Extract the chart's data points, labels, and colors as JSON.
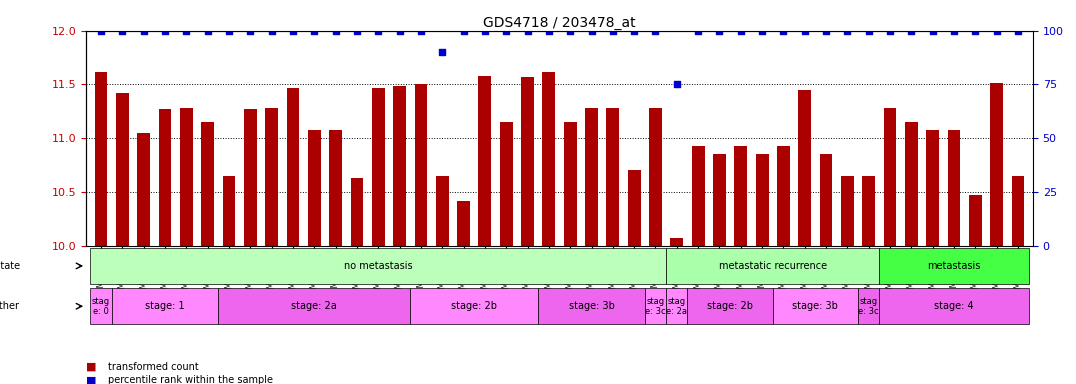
{
  "title": "GDS4718 / 203478_at",
  "samples": [
    "GSM549121",
    "GSM549102",
    "GSM549104",
    "GSM549108",
    "GSM549119",
    "GSM549133",
    "GSM549139",
    "GSM549099",
    "GSM549109",
    "GSM549110",
    "GSM549114",
    "GSM549122",
    "GSM549134",
    "GSM549136",
    "GSM549140",
    "GSM549111",
    "GSM549113",
    "GSM549132",
    "GSM549137",
    "GSM549142",
    "GSM549100",
    "GSM549107",
    "GSM549115",
    "GSM549116",
    "GSM549120",
    "GSM549131",
    "GSM549118",
    "GSM549129",
    "GSM549123",
    "GSM549124",
    "GSM549126",
    "GSM549128",
    "GSM549103",
    "GSM549117",
    "GSM549138",
    "GSM549141",
    "GSM549130",
    "GSM549101",
    "GSM549105",
    "GSM549106",
    "GSM549112",
    "GSM549125",
    "GSM549127",
    "GSM549135"
  ],
  "bar_values": [
    11.62,
    11.42,
    11.05,
    11.27,
    11.28,
    11.15,
    10.65,
    11.27,
    11.28,
    11.47,
    11.08,
    11.08,
    10.63,
    11.47,
    11.49,
    11.5,
    10.65,
    10.42,
    11.58,
    11.15,
    11.57,
    11.62,
    11.15,
    11.28,
    11.28,
    10.7,
    11.28,
    10.07,
    10.93,
    10.85,
    10.93,
    10.85,
    10.93,
    11.45,
    10.85,
    10.65,
    10.65,
    11.28,
    11.15,
    11.08,
    11.08,
    10.47,
    11.51,
    10.65
  ],
  "percentile_values": [
    100,
    100,
    100,
    100,
    100,
    100,
    100,
    100,
    100,
    100,
    100,
    100,
    100,
    100,
    100,
    100,
    90,
    100,
    100,
    100,
    100,
    100,
    100,
    100,
    100,
    100,
    100,
    75,
    100,
    100,
    100,
    100,
    100,
    100,
    100,
    100,
    100,
    100,
    100,
    100,
    100,
    100,
    100,
    100
  ],
  "ylim_left": [
    10,
    12
  ],
  "ylim_right": [
    0,
    100
  ],
  "yticks_left": [
    10,
    10.5,
    11,
    11.5,
    12
  ],
  "yticks_right": [
    0,
    25,
    50,
    75,
    100
  ],
  "bar_color": "#aa0000",
  "dot_color": "#0000cc",
  "background_color": "#ffffff",
  "disease_state_groups": [
    {
      "label": "no metastasis",
      "start": 0,
      "end": 27,
      "color": "#bbffbb"
    },
    {
      "label": "metastatic recurrence",
      "start": 27,
      "end": 37,
      "color": "#aaffaa"
    },
    {
      "label": "metastasis",
      "start": 37,
      "end": 44,
      "color": "#44ff44"
    }
  ],
  "stage_groups": [
    {
      "label": "stag\ne: 0",
      "start": 0,
      "end": 1,
      "color": "#ff88ff"
    },
    {
      "label": "stage: 1",
      "start": 1,
      "end": 6,
      "color": "#ff88ff"
    },
    {
      "label": "stage: 2a",
      "start": 6,
      "end": 15,
      "color": "#ee66ee"
    },
    {
      "label": "stage: 2b",
      "start": 15,
      "end": 21,
      "color": "#ff88ff"
    },
    {
      "label": "stage: 3b",
      "start": 21,
      "end": 26,
      "color": "#ee66ee"
    },
    {
      "label": "stag\ne: 3c",
      "start": 26,
      "end": 27,
      "color": "#ff88ff"
    },
    {
      "label": "stag\ne: 2a",
      "start": 27,
      "end": 28,
      "color": "#ff88ff"
    },
    {
      "label": "stage: 2b",
      "start": 28,
      "end": 32,
      "color": "#ee66ee"
    },
    {
      "label": "stage: 3b",
      "start": 32,
      "end": 36,
      "color": "#ff88ff"
    },
    {
      "label": "stag\ne: 3c",
      "start": 36,
      "end": 37,
      "color": "#ee66ee"
    },
    {
      "label": "stage: 4",
      "start": 37,
      "end": 44,
      "color": "#ee66ee"
    }
  ],
  "legend_items": [
    {
      "label": "transformed count",
      "color": "#aa0000",
      "marker": "s"
    },
    {
      "label": "percentile rank within the sample",
      "color": "#0000cc",
      "marker": "s"
    }
  ]
}
